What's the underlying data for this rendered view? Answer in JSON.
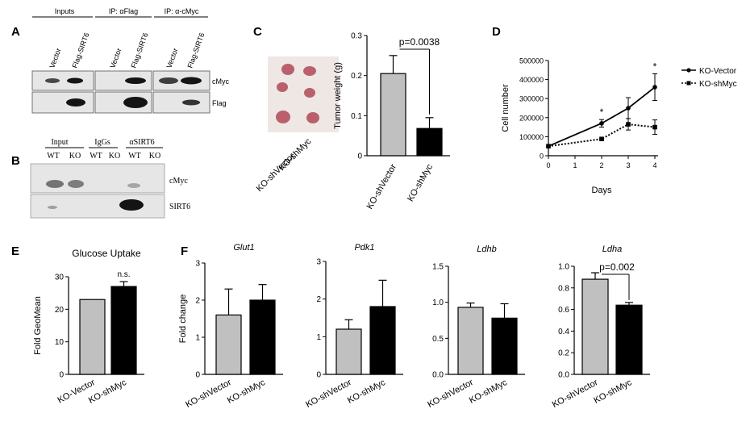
{
  "colors": {
    "gray_bar": "#c0c0c0",
    "black_bar": "#000000",
    "blot_bg": "#e6e6e6",
    "band": "#141414",
    "photo_bg": "#efe7e4",
    "tumor": "#b9606c"
  },
  "panels": {
    "A": {
      "letter": "A",
      "groups": [
        "Inputs",
        "IP: αFlag",
        "IP: α-cMyc"
      ],
      "lanes": [
        "Vector",
        "Flag-SIRT6",
        "Vector",
        "Flag-SIRT6",
        "Vector",
        "Flag-SIRT6"
      ],
      "rows": [
        "cMyc",
        "Flag"
      ]
    },
    "B": {
      "letter": "B",
      "groups": [
        "Input",
        "IgGs",
        "αSIRT6"
      ],
      "lanes": [
        "WT",
        "KO",
        "WT",
        "KO",
        "WT",
        "KO"
      ],
      "rows": [
        "cMyc",
        "SIRT6"
      ]
    },
    "C": {
      "letter": "C",
      "photo_labels": [
        "KO-shVector",
        "KO-shMyc"
      ]
    },
    "D": {
      "letter": "D"
    },
    "E": {
      "letter": "E"
    },
    "F": {
      "letter": "F"
    }
  },
  "chart_data": [
    {
      "id": "C",
      "type": "bar",
      "title": "",
      "xlabel": "",
      "ylabel": "Tumor weight (g)",
      "categories": [
        "KO-shVector",
        "KO-shMyc"
      ],
      "values": [
        0.205,
        0.068
      ],
      "errors": [
        0.045,
        0.027
      ],
      "ylim": [
        0,
        0.3
      ],
      "yticks": [
        "0",
        "0.1",
        "0.2",
        "0.3"
      ],
      "annotation": "p=0.0038"
    },
    {
      "id": "D",
      "type": "line",
      "xlabel": "Days",
      "ylabel": "Cell number",
      "x": [
        0,
        1,
        2,
        3,
        4
      ],
      "xticks": [
        "0",
        "1",
        "2",
        "3",
        "4"
      ],
      "ylim": [
        0,
        500000
      ],
      "yticks": [
        "0",
        "100000",
        "200000",
        "300000",
        "400000",
        "500000"
      ],
      "legend_position": "top-right",
      "series": [
        {
          "name": "KO-Vector",
          "x": [
            0,
            2,
            3,
            4
          ],
          "values": [
            50000,
            170000,
            250000,
            360000
          ],
          "errors": [
            0,
            20000,
            55000,
            70000
          ],
          "style": "solid"
        },
        {
          "name": "KO-shMyc",
          "x": [
            0,
            2,
            3,
            4
          ],
          "values": [
            50000,
            88000,
            165000,
            150000
          ],
          "errors": [
            0,
            5000,
            30000,
            38000
          ],
          "style": "dotted"
        }
      ],
      "annotations": [
        "*",
        "*"
      ]
    },
    {
      "id": "E",
      "type": "bar",
      "title": "Glucose Uptake",
      "ylabel": "Fold GeoMean",
      "categories": [
        "KO-Vector",
        "KO-shMyc"
      ],
      "values": [
        23,
        27
      ],
      "errors": [
        0,
        1.5
      ],
      "ylim": [
        0,
        30
      ],
      "yticks": [
        "0",
        "10",
        "20",
        "30"
      ],
      "annotation": "n.s."
    },
    {
      "id": "F1",
      "type": "bar",
      "title": "Glut1",
      "ylabel": "Fold change",
      "categories": [
        "KO-shVector",
        "KO-shMyc"
      ],
      "values": [
        1.6,
        2.0
      ],
      "errors": [
        0.7,
        0.42
      ],
      "ylim": [
        0,
        3
      ],
      "yticks": [
        "0",
        "1",
        "2",
        "3"
      ]
    },
    {
      "id": "F2",
      "type": "bar",
      "title": "Pdk1",
      "ylabel": "",
      "categories": [
        "KO-shVector",
        "KO-shMyc"
      ],
      "values": [
        1.2,
        1.8
      ],
      "errors": [
        0.25,
        0.7
      ],
      "ylim": [
        0,
        3
      ],
      "yticks": [
        "0",
        "1",
        "2",
        "3"
      ]
    },
    {
      "id": "F3",
      "type": "bar",
      "title": "Ldhb",
      "ylabel": "",
      "categories": [
        "KO-shVector",
        "KO-shMyc"
      ],
      "values": [
        0.93,
        0.78
      ],
      "errors": [
        0.06,
        0.2
      ],
      "ylim": [
        0,
        1.5
      ],
      "yticks": [
        "0.0",
        "0.5",
        "1.0",
        "1.5"
      ]
    },
    {
      "id": "F4",
      "type": "bar",
      "title": "Ldha",
      "ylabel": "",
      "categories": [
        "KO-shVector",
        "KO-shMyc"
      ],
      "values": [
        0.88,
        0.64
      ],
      "errors": [
        0.06,
        0.025
      ],
      "ylim": [
        0,
        1.0
      ],
      "yticks": [
        "0.0",
        "0.2",
        "0.4",
        "0.6",
        "0.8",
        "1.0"
      ],
      "annotation": "p=0.002"
    }
  ]
}
